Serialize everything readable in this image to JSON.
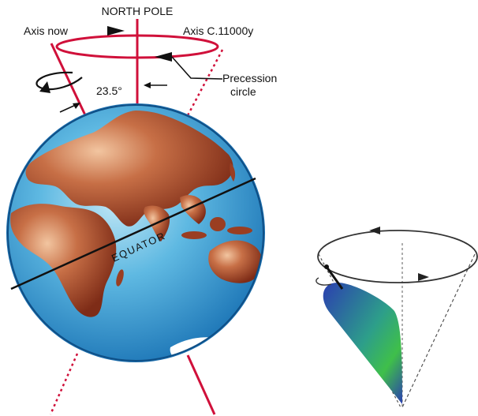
{
  "labels": {
    "north_pole": "NORTH POLE",
    "axis_now": "Axis now",
    "axis_future": "Axis C.11000y",
    "precession_line1": "Precession",
    "precession_line2": "circle",
    "tilt_angle": "23.5°",
    "equator": "EQUATOR"
  },
  "colors": {
    "axis_red": "#d0103a",
    "ocean": "#3a9bd0",
    "land": "#9a3e22",
    "ice": "#ffffff"
  }
}
